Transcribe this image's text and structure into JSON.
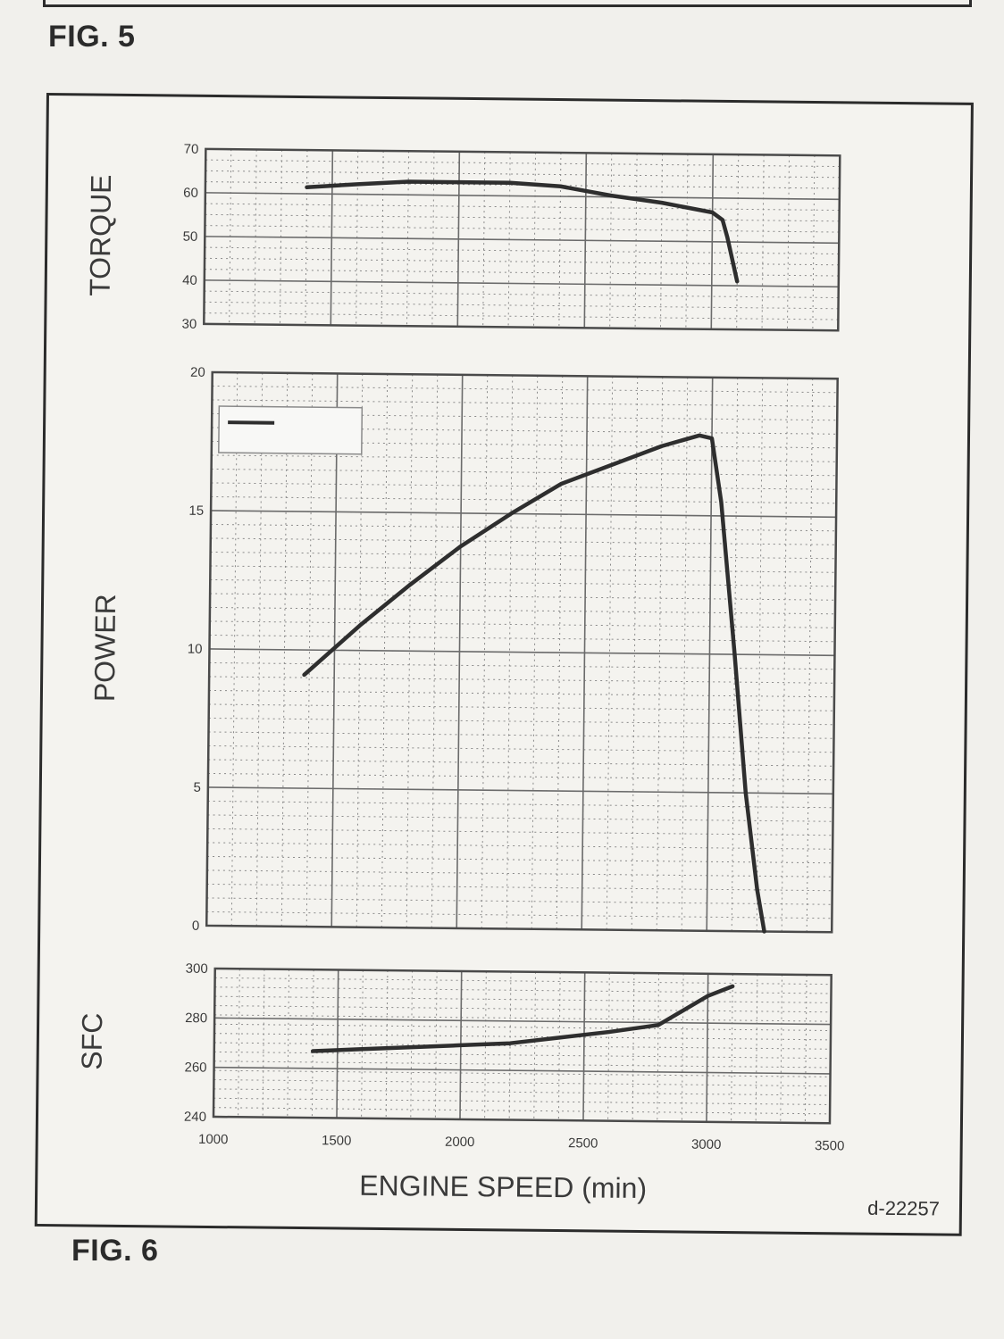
{
  "figure_top_label": "FIG. 5",
  "figure_label": "FIG. 6",
  "drawing_code": "d-22257",
  "colors": {
    "line": "#2e2e2e",
    "grid": "#8a8a8a",
    "paper": "#f1f0ec"
  },
  "chart_data": [
    {
      "type": "line",
      "title": "",
      "ylabel": "TORQUE",
      "xlabel": "",
      "xlim": [
        1000,
        3500
      ],
      "ylim": [
        30,
        70
      ],
      "yticks": [
        70,
        60,
        50,
        40,
        30
      ],
      "grid": true,
      "series": [
        {
          "x": [
            1400,
            1600,
            1800,
            2000,
            2200,
            2400,
            2600,
            2800,
            3000,
            3040,
            3060,
            3080,
            3100
          ],
          "y": [
            61.5,
            62.3,
            63.0,
            63.0,
            63.0,
            62.3,
            60.3,
            58.8,
            56.7,
            55.0,
            51.0,
            46.0,
            41.0
          ]
        }
      ]
    },
    {
      "type": "line",
      "title": "",
      "ylabel": "POWER",
      "xlabel": "",
      "xlim": [
        1000,
        3500
      ],
      "ylim": [
        0,
        20
      ],
      "yticks": [
        20,
        15,
        10,
        5,
        0
      ],
      "grid": true,
      "legend": "top-left",
      "series": [
        {
          "x": [
            1380,
            1600,
            1800,
            2000,
            2200,
            2400,
            2600,
            2800,
            2950,
            3000,
            3040,
            3100,
            3150,
            3200,
            3230
          ],
          "y": [
            9.1,
            10.9,
            12.4,
            13.8,
            15.0,
            16.1,
            16.8,
            17.5,
            17.9,
            17.8,
            15.5,
            10.0,
            5.0,
            1.5,
            0
          ]
        }
      ]
    },
    {
      "type": "line",
      "title": "",
      "ylabel": "SFC",
      "xlabel": "ENGINE SPEED (min)",
      "xlim": [
        1000,
        3500
      ],
      "ylim": [
        240,
        300
      ],
      "yticks": [
        300,
        280,
        260,
        240
      ],
      "xticks": [
        1000,
        1500,
        2000,
        2500,
        3000,
        3500
      ],
      "grid": true,
      "series": [
        {
          "x": [
            1400,
            1600,
            1800,
            2000,
            2200,
            2400,
            2600,
            2800,
            2900,
            3000,
            3100
          ],
          "y": [
            267,
            268,
            269,
            270,
            271,
            273.5,
            276,
            279,
            285,
            291,
            295
          ]
        }
      ]
    }
  ]
}
